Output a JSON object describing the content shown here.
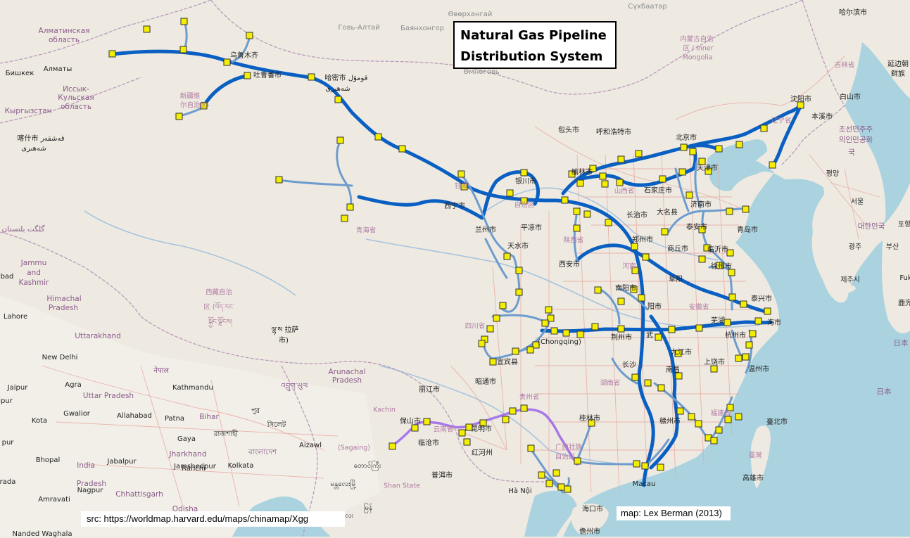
{
  "title": {
    "line1": "Natural Gas Pipeline",
    "line2": "Distribution System"
  },
  "credits": {
    "source": "src: https://worldmap.harvard.edu/maps/chinamap/Xgg",
    "author": "map:  Lex Berman (2013)"
  },
  "colors": {
    "land": "#eeeae2",
    "land_india": "#f2efe8",
    "sea": "#aad3df",
    "border": "#b591b5",
    "river": "#a6c4de",
    "road": "#e8a9a0",
    "trunk_pipeline": "#0a5fc2",
    "branch_pipeline": "#6d9ccd",
    "southwest_pipeline": "#a678e8",
    "node_fill": "#f4ee00",
    "node_stroke": "#333333"
  },
  "labels": [
    {
      "id": "almaty-obl",
      "text": "Алматинская",
      "class": "country"
    },
    {
      "id": "almaty-obl2",
      "text": "область",
      "class": "country"
    },
    {
      "id": "gobi-altai",
      "text": "Говь-Алтай",
      "class": "faded"
    },
    {
      "id": "bayankhongor",
      "text": "Баянхонгор",
      "class": "faded"
    },
    {
      "id": "ovorkhangai",
      "text": "Өвөрхангай",
      "class": "faded"
    },
    {
      "id": "sukhbaatar",
      "text": "Сүхбаатар",
      "class": "faded"
    },
    {
      "id": "harbin",
      "text": "哈尔滨市",
      "class": "city"
    },
    {
      "id": "nei-mongol1",
      "text": "内蒙古自治",
      "class": "region"
    },
    {
      "id": "nei-mongol2",
      "text": "区 / Inner",
      "class": "region"
    },
    {
      "id": "nei-mongol3",
      "text": "Mongolia",
      "class": "region"
    },
    {
      "id": "jilin",
      "text": "吉林省",
      "class": "region"
    },
    {
      "id": "yanji1",
      "text": "延边朝",
      "class": "city"
    },
    {
      "id": "yanji2",
      "text": "鲜族",
      "class": "city"
    },
    {
      "id": "omnogovi",
      "text": "Өмнөговь",
      "class": "faded"
    },
    {
      "id": "bishkek",
      "text": "Бишкек",
      "class": "city"
    },
    {
      "id": "almaty",
      "text": "Алматы",
      "class": "city"
    },
    {
      "id": "issyk1",
      "text": "Иссык-",
      "class": "country"
    },
    {
      "id": "issyk2",
      "text": "Кульская",
      "class": "country"
    },
    {
      "id": "issyk3",
      "text": "область",
      "class": "country"
    },
    {
      "id": "kyrgyzstan",
      "text": "Кыргызстан",
      "class": "country"
    },
    {
      "id": "urumqi",
      "text": "乌鲁木齐",
      "class": "city"
    },
    {
      "id": "turpan",
      "text": "吐鲁番市",
      "class": "city"
    },
    {
      "id": "hami",
      "text": "哈密市 قومۇل",
      "class": "city"
    },
    {
      "id": "hami2",
      "text": "شەھىرى",
      "class": "city"
    },
    {
      "id": "xinjiang1",
      "text": "新疆维",
      "class": "region"
    },
    {
      "id": "xinjiang2",
      "text": "尔自治区",
      "class": "region"
    },
    {
      "id": "kashgar",
      "text": "喀什市 قەشقەر",
      "class": "city"
    },
    {
      "id": "kashgar2",
      "text": "شەھىرى",
      "class": "city"
    },
    {
      "id": "baotou",
      "text": "包头市",
      "class": "city"
    },
    {
      "id": "hohhot",
      "text": "呼和浩特市",
      "class": "city"
    },
    {
      "id": "beijing",
      "text": "北京市",
      "class": "city"
    },
    {
      "id": "tianjin",
      "text": "天津市",
      "class": "city"
    },
    {
      "id": "shenyang",
      "text": "沈阳市",
      "class": "city"
    },
    {
      "id": "benxi",
      "text": "本溪市",
      "class": "city"
    },
    {
      "id": "liaoning",
      "text": "辽宁省",
      "class": "region"
    },
    {
      "id": "baishan",
      "text": "白山市",
      "class": "city"
    },
    {
      "id": "nk1",
      "text": "조선민주주",
      "class": "country"
    },
    {
      "id": "nk2",
      "text": "의인민공화",
      "class": "country"
    },
    {
      "id": "nk3",
      "text": "국",
      "class": "country"
    },
    {
      "id": "pyongyang",
      "text": "평양",
      "class": "city"
    },
    {
      "id": "seoul",
      "text": "서울",
      "class": "city"
    },
    {
      "id": "korea",
      "text": "대한민국",
      "class": "country"
    },
    {
      "id": "gwangju",
      "text": "광주",
      "class": "city"
    },
    {
      "id": "busan",
      "text": "부산",
      "class": "city"
    },
    {
      "id": "jeju",
      "text": "제주시",
      "class": "city"
    },
    {
      "id": "pohang",
      "text": "포항",
      "class": "city"
    },
    {
      "id": "yinchuan",
      "text": "银川市",
      "class": "city"
    },
    {
      "id": "ningxia",
      "text": "自治区",
      "class": "region"
    },
    {
      "id": "yulin",
      "text": "榆林市",
      "class": "city"
    },
    {
      "id": "shanxi",
      "text": "山西省",
      "class": "region"
    },
    {
      "id": "shijiazhuang",
      "text": "石家庄市",
      "class": "city"
    },
    {
      "id": "jinan",
      "text": "济南市",
      "class": "city"
    },
    {
      "id": "taian",
      "text": "泰安市",
      "class": "city"
    },
    {
      "id": "qingdao",
      "text": "青岛市",
      "class": "city"
    },
    {
      "id": "changzhi",
      "text": "长治市",
      "class": "city"
    },
    {
      "id": "daming",
      "text": "大名县",
      "class": "city"
    },
    {
      "id": "xining",
      "text": "西宁市",
      "class": "city"
    },
    {
      "id": "gansu",
      "text": "甘肃",
      "class": "region"
    },
    {
      "id": "lanzhou",
      "text": "兰州市",
      "class": "city"
    },
    {
      "id": "pingliang",
      "text": "平凉市",
      "class": "city"
    },
    {
      "id": "tianshui",
      "text": "天水市",
      "class": "city"
    },
    {
      "id": "shaanxi",
      "text": "陕西省",
      "class": "region"
    },
    {
      "id": "xian",
      "text": "西安市",
      "class": "city"
    },
    {
      "id": "zhengzhou",
      "text": "郑州市",
      "class": "city"
    },
    {
      "id": "shangqiu",
      "text": "商丘市",
      "class": "city"
    },
    {
      "id": "linyi",
      "text": "临沂市",
      "class": "city"
    },
    {
      "id": "xuzhou",
      "text": "徐州市",
      "class": "city"
    },
    {
      "id": "henan",
      "text": "河南",
      "class": "region"
    },
    {
      "id": "nanyang",
      "text": "南阳市",
      "class": "city"
    },
    {
      "id": "fuyang",
      "text": "阜阳",
      "class": "city"
    },
    {
      "id": "xinyang",
      "text": "阳市",
      "class": "city"
    },
    {
      "id": "taixing",
      "text": "泰兴市",
      "class": "city"
    },
    {
      "id": "anhui",
      "text": "安徽省",
      "class": "region"
    },
    {
      "id": "shanghai",
      "text": "海市",
      "class": "city"
    },
    {
      "id": "wuhu",
      "text": "芜湖",
      "class": "city"
    },
    {
      "id": "qinghai",
      "text": "青海省",
      "class": "region"
    },
    {
      "id": "tibet1",
      "text": "西藏自治",
      "class": "region"
    },
    {
      "id": "tibet2",
      "text": "区 (བོད་རང་",
      "class": "region"
    },
    {
      "id": "tibet3",
      "text": "སྐྱོང་ལྗོངས།",
      "class": "region"
    },
    {
      "id": "lhasa",
      "text": "ལྷ་ས 拉萨",
      "class": "city"
    },
    {
      "id": "lhasa2",
      "text": "市)",
      "class": "city"
    },
    {
      "id": "sichuan",
      "text": "四川省",
      "class": "region"
    },
    {
      "id": "chongqing",
      "text": "(Chongqing)",
      "class": "city"
    },
    {
      "id": "jingzhou",
      "text": "荆州市",
      "class": "city"
    },
    {
      "id": "wuhan",
      "text": "武",
      "class": "city"
    },
    {
      "id": "jiujiang",
      "text": "九江市",
      "class": "city"
    },
    {
      "id": "hangzhou",
      "text": "杭州市",
      "class": "city"
    },
    {
      "id": "shangrao",
      "text": "上饶市",
      "class": "city"
    },
    {
      "id": "wenzhou",
      "text": "温州市",
      "class": "city"
    },
    {
      "id": "changsha",
      "text": "长沙",
      "class": "city"
    },
    {
      "id": "hunan",
      "text": "湖南省",
      "class": "region"
    },
    {
      "id": "nanchang",
      "text": "南昌",
      "class": "city"
    },
    {
      "id": "yibin",
      "text": "宜宾县",
      "class": "city"
    },
    {
      "id": "zhaotong",
      "text": "昭通市",
      "class": "city"
    },
    {
      "id": "lijiang",
      "text": "丽江市",
      "class": "city"
    },
    {
      "id": "guizhou",
      "text": "贵州省",
      "class": "region"
    },
    {
      "id": "guilin",
      "text": "桂林市",
      "class": "city"
    },
    {
      "id": "ganzhou",
      "text": "赣州市",
      "class": "city"
    },
    {
      "id": "fujian",
      "text": "福建省",
      "class": "region"
    },
    {
      "id": "taipei",
      "text": "臺北市",
      "class": "city"
    },
    {
      "id": "taiwan",
      "text": "臺灣",
      "class": "region"
    },
    {
      "id": "kaohsiung",
      "text": "高雄市",
      "class": "city"
    },
    {
      "id": "baoshan",
      "text": "保山市",
      "class": "city"
    },
    {
      "id": "yunnan",
      "text": "云南省",
      "class": "region"
    },
    {
      "id": "kunming",
      "text": "昆明市",
      "class": "city"
    },
    {
      "id": "lincang",
      "text": "临沧市",
      "class": "city"
    },
    {
      "id": "honghe",
      "text": "红河州",
      "class": "city"
    },
    {
      "id": "puer",
      "text": "普洱市",
      "class": "city"
    },
    {
      "id": "guangxi",
      "text": "广西壮族",
      "class": "region"
    },
    {
      "id": "guangxi2",
      "text": "自治区",
      "class": "region"
    },
    {
      "id": "hanoi",
      "text": "Hà Nội",
      "class": "city"
    },
    {
      "id": "haikou",
      "text": "海口市",
      "class": "city"
    },
    {
      "id": "danzhou",
      "text": "儋州市",
      "class": "city"
    },
    {
      "id": "macau",
      "text": "Macau",
      "class": "city"
    },
    {
      "id": "kachin",
      "text": "Kachin",
      "class": "region"
    },
    {
      "id": "sagaing",
      "text": "(Sagaing)",
      "class": "region"
    },
    {
      "id": "shan",
      "text": "Shan State",
      "class": "region"
    },
    {
      "id": "myanmar1",
      "text": "တောင်ကြီး",
      "class": "city"
    },
    {
      "id": "myanmar2",
      "text": "မန္တလေးမြို့",
      "class": "city"
    },
    {
      "id": "myanmar3",
      "text": "မြန်",
      "class": "city"
    },
    {
      "id": "mandalay",
      "text": "မန္တလေး",
      "class": "city"
    },
    {
      "id": "gilgit",
      "text": "گلگت بلتستان",
      "class": "country"
    },
    {
      "id": "jammu1",
      "text": "Jammu",
      "class": "country"
    },
    {
      "id": "jammu2",
      "text": "and",
      "class": "country"
    },
    {
      "id": "jammu3",
      "text": "Kashmir",
      "class": "country"
    },
    {
      "id": "bad",
      "text": "bad",
      "class": "city"
    },
    {
      "id": "himachal1",
      "text": "Himachal",
      "class": "country"
    },
    {
      "id": "himachal2",
      "text": "Pradesh",
      "class": "country"
    },
    {
      "id": "lahore",
      "text": "Lahore",
      "class": "city"
    },
    {
      "id": "uttarakhand",
      "text": "Uttarakhand",
      "class": "country"
    },
    {
      "id": "delhi",
      "text": "New Delhi",
      "class": "city"
    },
    {
      "id": "nepal",
      "text": "नेपाल",
      "class": "country"
    },
    {
      "id": "jaipur",
      "text": "Jaipur",
      "class": "city"
    },
    {
      "id": "agra",
      "text": "Agra",
      "class": "city"
    },
    {
      "id": "kathmandu",
      "text": "Kathmandu",
      "class": "city"
    },
    {
      "id": "bhutan",
      "text": "འབྲུག་ཡུལ",
      "class": "country"
    },
    {
      "id": "arunachal1",
      "text": "Arunachal",
      "class": "country"
    },
    {
      "id": "arunachal2",
      "text": "Pradesh",
      "class": "country"
    },
    {
      "id": "uttarpradesh",
      "text": "Uttar Pradesh",
      "class": "country"
    },
    {
      "id": "gwalior",
      "text": "Gwalior",
      "class": "city"
    },
    {
      "id": "kota",
      "text": "Kota",
      "class": "city"
    },
    {
      "id": "allahabad",
      "text": "Allahabad",
      "class": "city"
    },
    {
      "id": "patna",
      "text": "Patna",
      "class": "city"
    },
    {
      "id": "bihar",
      "text": "Bihar",
      "class": "country"
    },
    {
      "id": "pur",
      "text": "পুর",
      "class": "city"
    },
    {
      "id": "sylhet",
      "text": "সিলেট",
      "class": "city"
    },
    {
      "id": "gaya",
      "text": "Gaya",
      "class": "city"
    },
    {
      "id": "rajshahi",
      "text": "রাজশাহী",
      "class": "city"
    },
    {
      "id": "bangladesh",
      "text": "বাংলাদেশ",
      "class": "country"
    },
    {
      "id": "aizawl",
      "text": "Aizawl",
      "class": "city"
    },
    {
      "id": "jharkhand",
      "text": "Jharkhand",
      "class": "country"
    },
    {
      "id": "ranchi",
      "text": "Ranchi",
      "class": "city"
    },
    {
      "id": "india",
      "text": "India",
      "class": "country"
    },
    {
      "id": "bhopal",
      "text": "Bhopal",
      "class": "city"
    },
    {
      "id": "jabalpur",
      "text": "Jabalpur",
      "class": "city"
    },
    {
      "id": "jamshedpur",
      "text": "Jamshedpur",
      "class": "city"
    },
    {
      "id": "kolkata",
      "text": "Kolkata",
      "class": "city"
    },
    {
      "id": "pradesh",
      "text": "Pradesh",
      "class": "country"
    },
    {
      "id": "nagpur",
      "text": "Nagpur",
      "class": "city"
    },
    {
      "id": "chhattisgarh",
      "text": "Chhattisgarh",
      "class": "country"
    },
    {
      "id": "amravati",
      "text": "Amravati",
      "class": "city"
    },
    {
      "id": "odisha",
      "text": "Odisha",
      "class": "country"
    },
    {
      "id": "ipur",
      "text": "ipur",
      "class": "city"
    },
    {
      "id": "pur2",
      "text": "pur",
      "class": "city"
    },
    {
      "id": "rada",
      "text": "rada",
      "class": "city"
    },
    {
      "id": "nanded",
      "text": "Nanded Waghala",
      "class": "city"
    },
    {
      "id": "fuk",
      "text": "Fuk",
      "class": "city"
    },
    {
      "id": "rokuji",
      "text": "鹿児",
      "class": "city"
    },
    {
      "id": "nihon",
      "text": "日本",
      "class": "country"
    },
    {
      "id": "nihon2",
      "text": "日本",
      "class": "country"
    }
  ]
}
